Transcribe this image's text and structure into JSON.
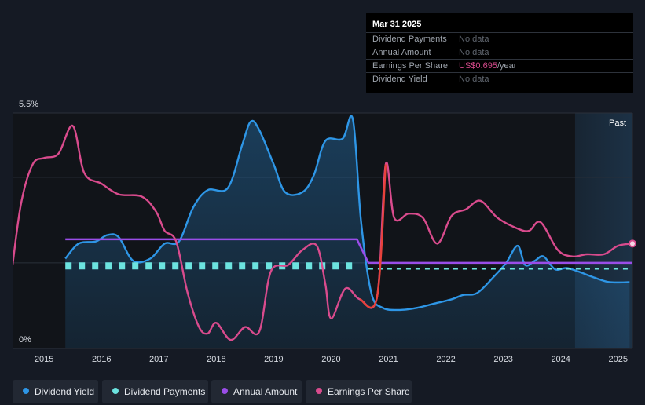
{
  "tooltip": {
    "date": "Mar 31 2025",
    "rows": [
      {
        "label": "Dividend Payments",
        "value": "No data"
      },
      {
        "label": "Annual Amount",
        "value": "No data"
      },
      {
        "label": "Earnings Per Share",
        "value": "US$0.695",
        "unit": "/year"
      },
      {
        "label": "Dividend Yield",
        "value": "No data"
      }
    ]
  },
  "legend": [
    {
      "label": "Dividend Yield",
      "color": "#2e96e6"
    },
    {
      "label": "Dividend Payments",
      "color": "#6ce3df"
    },
    {
      "label": "Annual Amount",
      "color": "#9a4de8"
    },
    {
      "label": "Earnings Per Share",
      "color": "#d94b8d"
    }
  ],
  "chart_data": {
    "type": "line",
    "y_axis": {
      "top_label": "5.5%",
      "bottom_label": "0%",
      "min": 0,
      "max": 5.5,
      "unit": "%"
    },
    "x_axis": {
      "ticks": [
        "2015",
        "2016",
        "2017",
        "2018",
        "2019",
        "2020",
        "2021",
        "2022",
        "2023",
        "2024",
        "2025"
      ],
      "range": [
        2014.45,
        2025.25
      ]
    },
    "past_label": "Past",
    "past_region_start": 2024.25,
    "grid": true,
    "legend_position": "bottom",
    "series": [
      {
        "name": "Dividend Yield",
        "color": "#2e96e6",
        "area": true,
        "points": [
          [
            2015.37,
            2.1
          ],
          [
            2015.6,
            2.45
          ],
          [
            2015.9,
            2.5
          ],
          [
            2016.1,
            2.65
          ],
          [
            2016.3,
            2.6
          ],
          [
            2016.55,
            2.05
          ],
          [
            2016.85,
            2.1
          ],
          [
            2017.1,
            2.45
          ],
          [
            2017.35,
            2.5
          ],
          [
            2017.6,
            3.3
          ],
          [
            2017.85,
            3.7
          ],
          [
            2018.2,
            3.75
          ],
          [
            2018.45,
            4.75
          ],
          [
            2018.6,
            5.3
          ],
          [
            2018.75,
            5.1
          ],
          [
            2019.0,
            4.3
          ],
          [
            2019.2,
            3.65
          ],
          [
            2019.5,
            3.65
          ],
          [
            2019.7,
            4.05
          ],
          [
            2019.9,
            4.85
          ],
          [
            2020.2,
            4.9
          ],
          [
            2020.38,
            5.35
          ],
          [
            2020.52,
            3.0
          ],
          [
            2020.7,
            1.3
          ],
          [
            2020.9,
            0.95
          ],
          [
            2021.2,
            0.9
          ],
          [
            2021.5,
            0.95
          ],
          [
            2021.8,
            1.05
          ],
          [
            2022.1,
            1.15
          ],
          [
            2022.3,
            1.25
          ],
          [
            2022.55,
            1.3
          ],
          [
            2022.85,
            1.7
          ],
          [
            2023.05,
            2.0
          ],
          [
            2023.25,
            2.4
          ],
          [
            2023.38,
            1.95
          ],
          [
            2023.55,
            2.05
          ],
          [
            2023.7,
            2.15
          ],
          [
            2023.9,
            1.85
          ],
          [
            2024.1,
            1.88
          ],
          [
            2024.3,
            1.8
          ],
          [
            2024.6,
            1.65
          ],
          [
            2024.85,
            1.55
          ],
          [
            2025.2,
            1.55
          ]
        ]
      },
      {
        "name": "Dividend Payments",
        "color": "#6ce3df",
        "dashed": true,
        "points": [
          [
            2015.37,
            1.93
          ],
          [
            2020.45,
            1.93
          ],
          [
            2020.65,
            1.86
          ],
          [
            2025.25,
            1.86
          ]
        ]
      },
      {
        "name": "Annual Amount",
        "color": "#9a4de8",
        "points": [
          [
            2015.37,
            2.55
          ],
          [
            2020.45,
            2.55
          ],
          [
            2020.65,
            2.0
          ],
          [
            2025.25,
            2.0
          ]
        ]
      },
      {
        "name": "Earnings Per Share",
        "color": "#d94b8d",
        "marker_end": true,
        "points": [
          [
            2014.45,
            1.95
          ],
          [
            2014.6,
            3.4
          ],
          [
            2014.8,
            4.3
          ],
          [
            2015.0,
            4.45
          ],
          [
            2015.25,
            4.55
          ],
          [
            2015.5,
            5.2
          ],
          [
            2015.7,
            4.1
          ],
          [
            2016.0,
            3.85
          ],
          [
            2016.3,
            3.6
          ],
          [
            2016.7,
            3.55
          ],
          [
            2016.95,
            3.2
          ],
          [
            2017.1,
            2.75
          ],
          [
            2017.3,
            2.5
          ],
          [
            2017.5,
            1.3
          ],
          [
            2017.7,
            0.5
          ],
          [
            2017.85,
            0.35
          ],
          [
            2018.0,
            0.6
          ],
          [
            2018.25,
            0.2
          ],
          [
            2018.5,
            0.5
          ],
          [
            2018.75,
            0.4
          ],
          [
            2018.95,
            1.8
          ],
          [
            2019.25,
            1.95
          ],
          [
            2019.5,
            2.3
          ],
          [
            2019.75,
            2.4
          ],
          [
            2019.9,
            1.5
          ],
          [
            2020.0,
            0.7
          ],
          [
            2020.25,
            1.4
          ],
          [
            2020.5,
            1.15
          ],
          [
            2020.8,
            1.2
          ],
          [
            2020.95,
            4.3
          ],
          [
            2021.1,
            3.05
          ],
          [
            2021.35,
            3.15
          ],
          [
            2021.6,
            3.05
          ],
          [
            2021.85,
            2.45
          ],
          [
            2022.1,
            3.1
          ],
          [
            2022.35,
            3.25
          ],
          [
            2022.6,
            3.45
          ],
          [
            2022.9,
            3.05
          ],
          [
            2023.25,
            2.8
          ],
          [
            2023.45,
            2.75
          ],
          [
            2023.65,
            2.95
          ],
          [
            2023.95,
            2.3
          ],
          [
            2024.2,
            2.15
          ],
          [
            2024.45,
            2.2
          ],
          [
            2024.75,
            2.2
          ],
          [
            2025.0,
            2.4
          ],
          [
            2025.25,
            2.45
          ]
        ]
      }
    ]
  }
}
